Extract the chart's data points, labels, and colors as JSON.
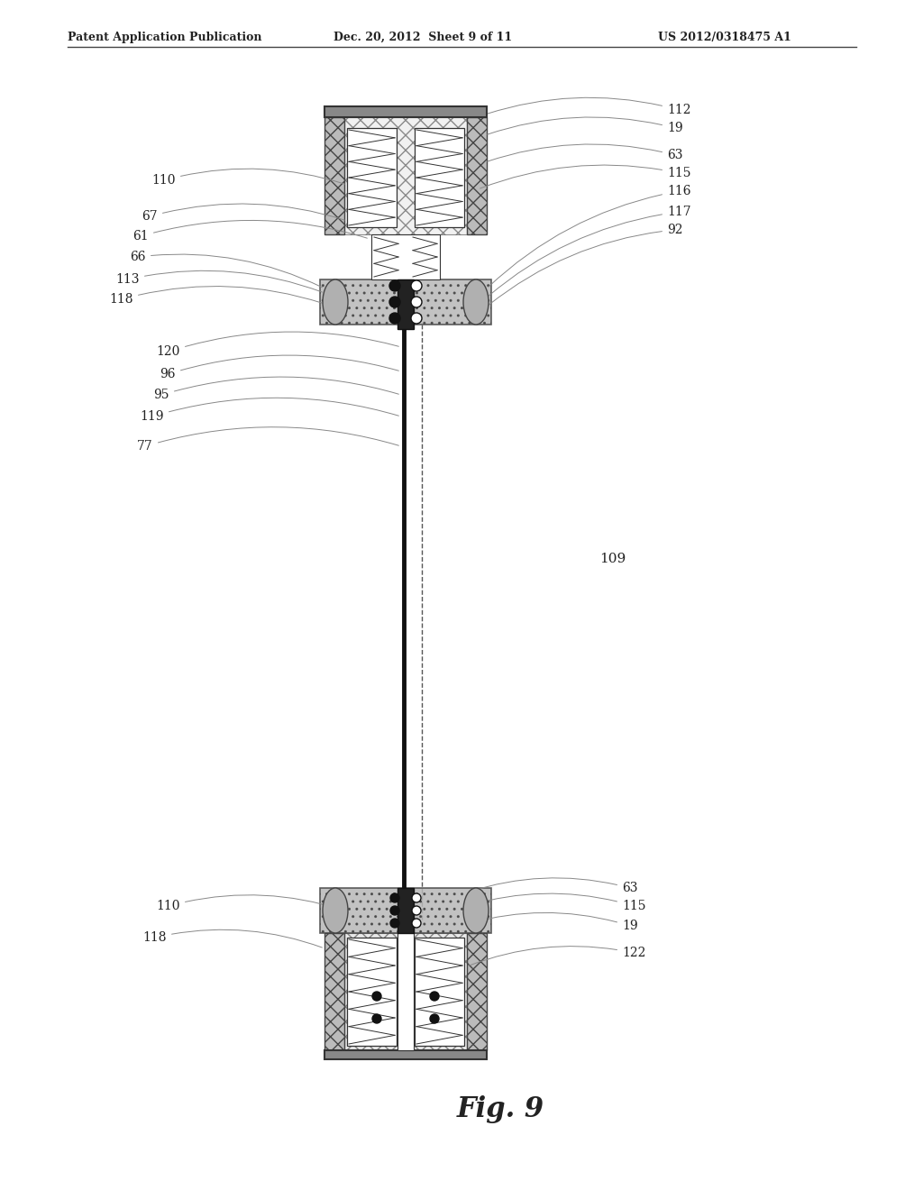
{
  "bg_color": "#ffffff",
  "header_left": "Patent Application Publication",
  "header_mid": "Dec. 20, 2012  Sheet 9 of 11",
  "header_right": "US 2012/0318475 A1",
  "fig_label": "Fig. 9",
  "fig_number": "109",
  "label_color": "#222222",
  "line_color": "#888888"
}
